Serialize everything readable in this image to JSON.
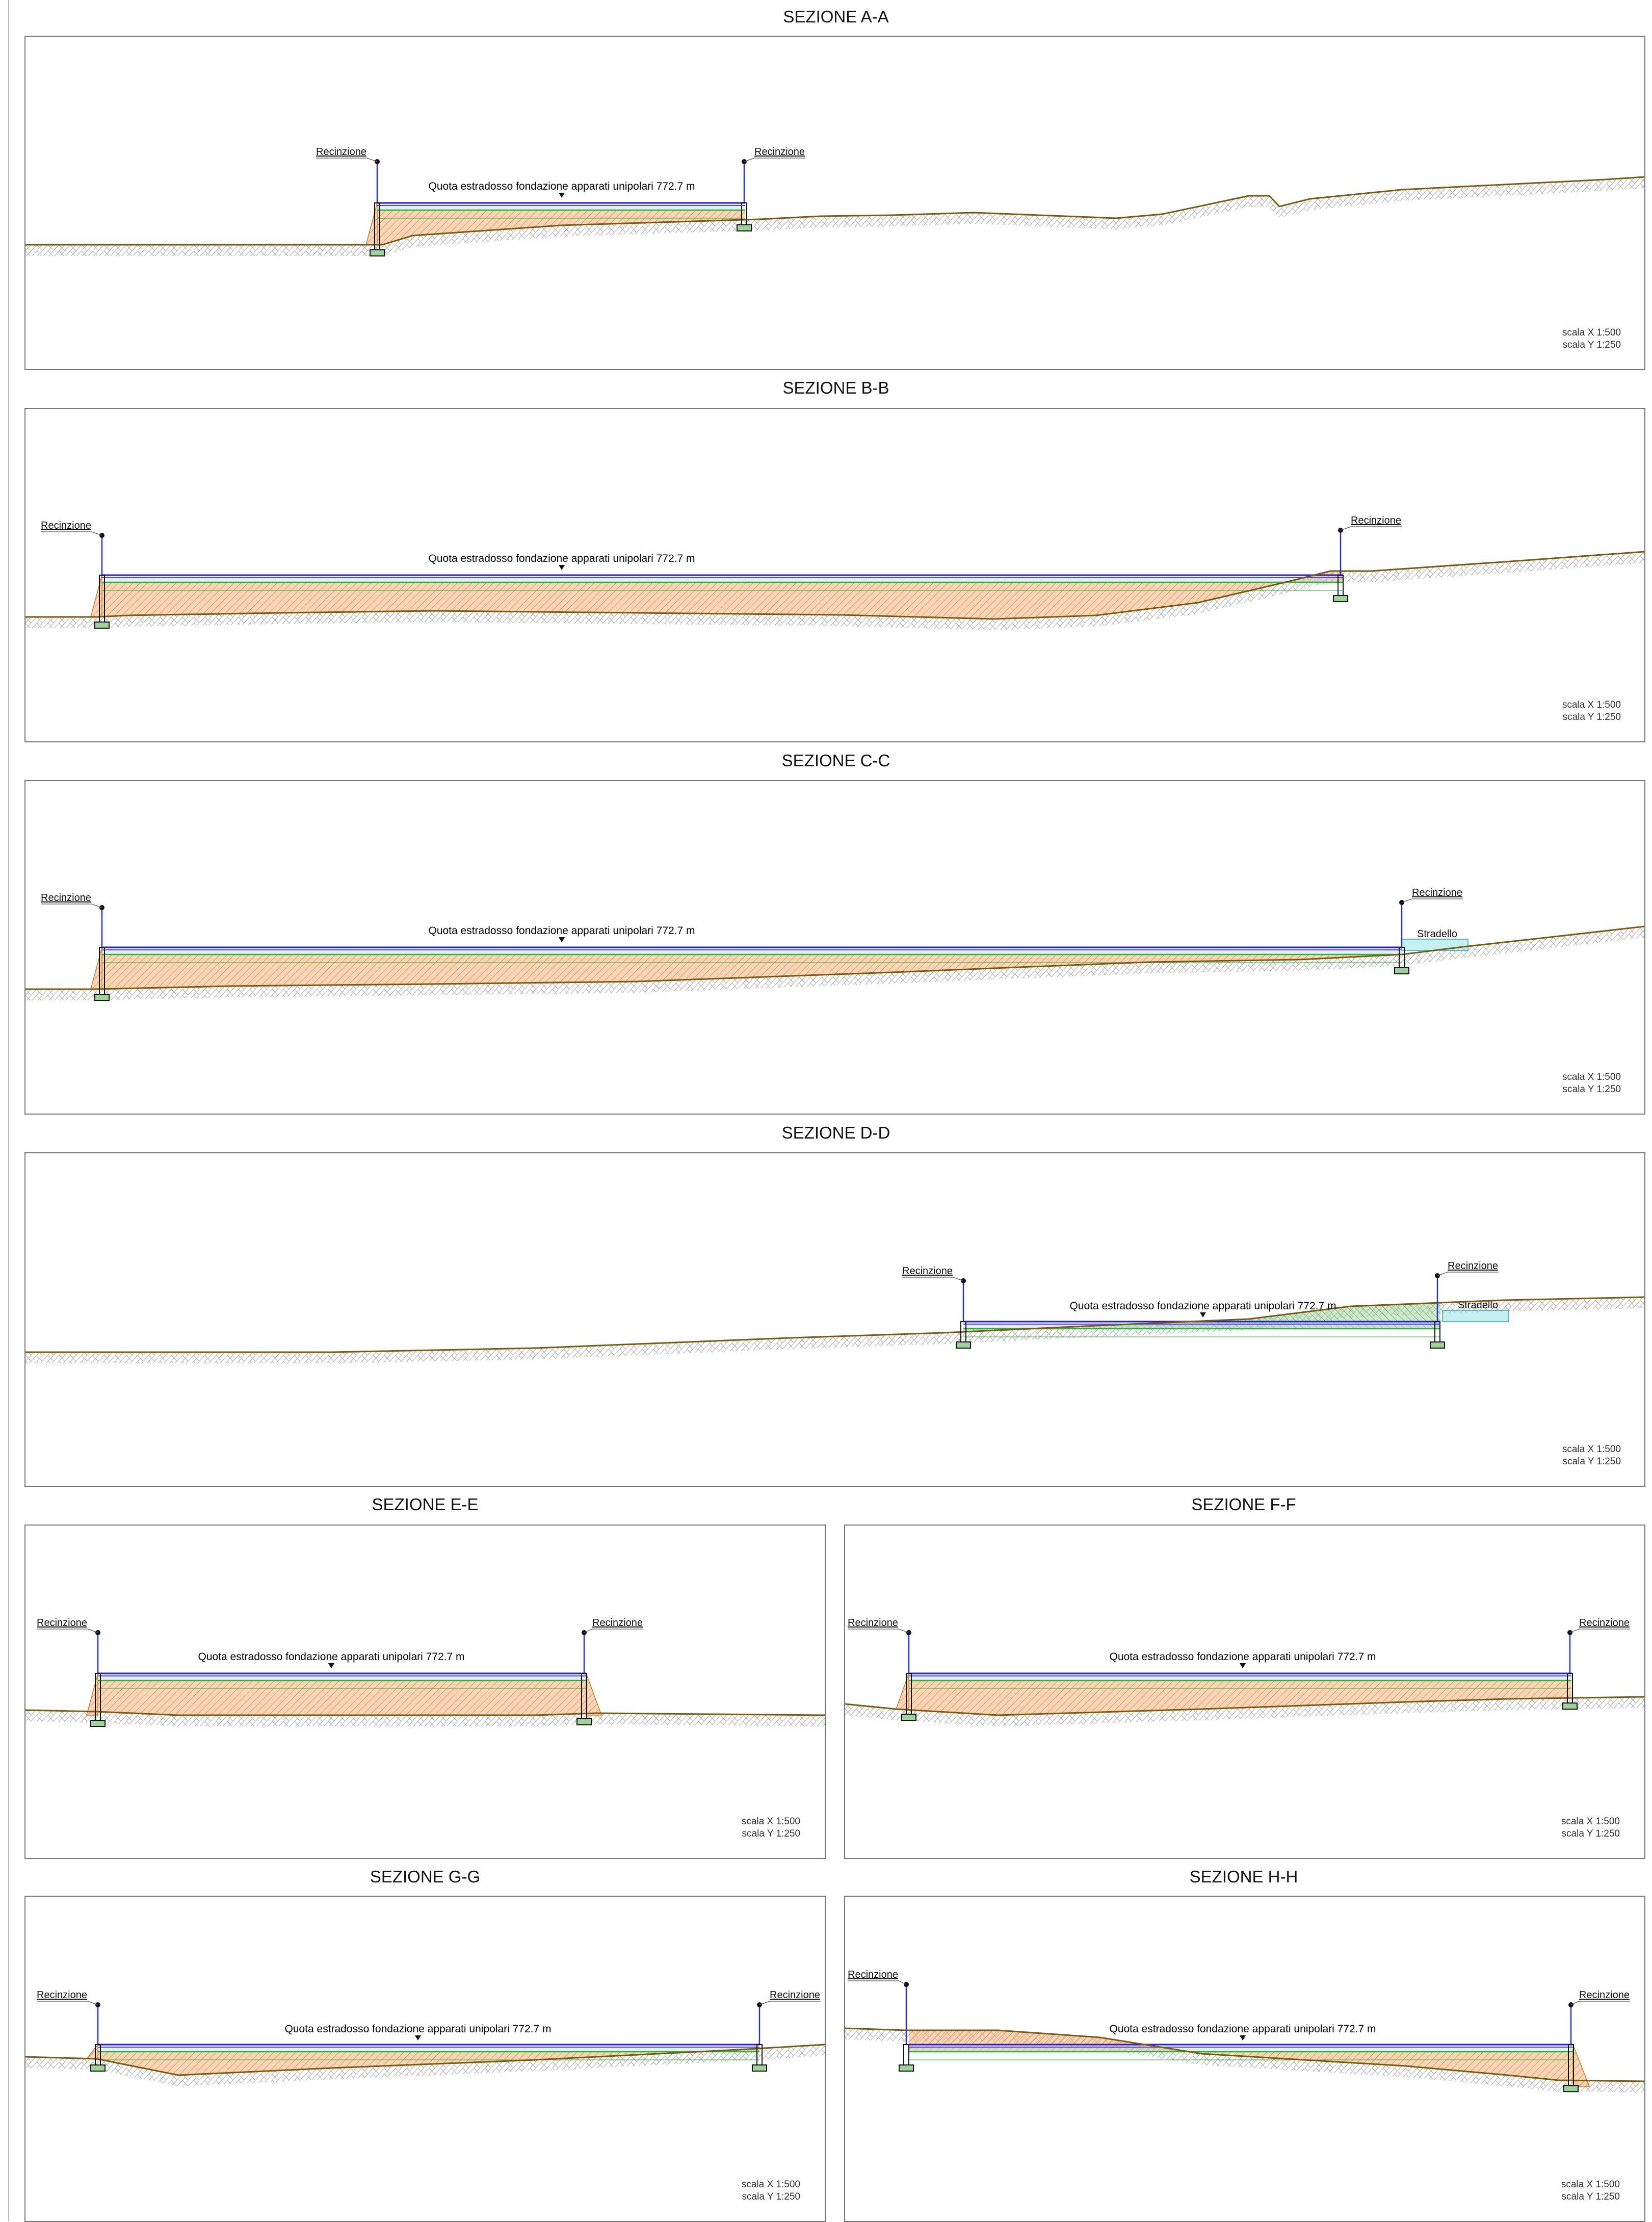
{
  "sections": [
    {
      "id": "A",
      "title": "SEZIONE A-A",
      "fence_left": "Recinzione",
      "fence_right": "Recinzione",
      "quota": "Quota estradosso fondazione apparati unipolari 772.7 m",
      "scale_x": "scala X 1:500",
      "scale_y": "scala Y 1:250"
    },
    {
      "id": "B",
      "title": "SEZIONE B-B",
      "fence_left": "Recinzione",
      "fence_right": "Recinzione",
      "quota": "Quota estradosso fondazione apparati unipolari 772.7 m",
      "scale_x": "scala X 1:500",
      "scale_y": "scala Y 1:250"
    },
    {
      "id": "C",
      "title": "SEZIONE C-C",
      "fence_left": "Recinzione",
      "fence_right": "Recinzione",
      "quota": "Quota estradosso fondazione apparati unipolari 772.7 m",
      "road": "Stradello",
      "scale_x": "scala X 1:500",
      "scale_y": "scala Y 1:250"
    },
    {
      "id": "D",
      "title": "SEZIONE D-D",
      "fence_left": "Recinzione",
      "fence_right": "Recinzione",
      "quota": "Quota estradosso fondazione apparati unipolari 772.7 m",
      "road": "Stradello",
      "scale_x": "scala X 1:500",
      "scale_y": "scala Y 1:250"
    },
    {
      "id": "E",
      "title": "SEZIONE E-E",
      "fence_left": "Recinzione",
      "fence_right": "Recinzione",
      "quota": "Quota estradosso fondazione apparati unipolari 772.7 m",
      "scale_x": "scala X 1:500",
      "scale_y": "scala Y 1:250"
    },
    {
      "id": "F",
      "title": "SEZIONE F-F",
      "fence_left": "Recinzione",
      "fence_right": "Recinzione",
      "quota": "Quota estradosso fondazione apparati unipolari 772.7 m",
      "scale_x": "scala X 1:500",
      "scale_y": "scala Y 1:250"
    },
    {
      "id": "G",
      "title": "SEZIONE G-G",
      "fence_left": "Recinzione",
      "fence_right": "Recinzione",
      "quota": "Quota estradosso fondazione apparati unipolari 772.7 m",
      "scale_x": "scala X 1:500",
      "scale_y": "scala Y 1:250"
    },
    {
      "id": "H",
      "title": "SEZIONE H-H",
      "fence_left": "Recinzione",
      "fence_right": "Recinzione",
      "quota": "Quota estradosso fondazione apparati unipolari 772.7 m",
      "scale_x": "scala X 1:500",
      "scale_y": "scala Y 1:250"
    }
  ],
  "colors": {
    "terrain_line": "#7a5a10",
    "fill_orange": "#f2b27a",
    "fill_green": "#9ed49a",
    "fill_cyan": "#9ee6ea",
    "platform_blue": "#2222cc",
    "platform_purple": "#8a2be2",
    "layer_green": "#2ab52a",
    "fence_blue": "#2233dd",
    "soil_hatch": "#b5b5b5"
  }
}
